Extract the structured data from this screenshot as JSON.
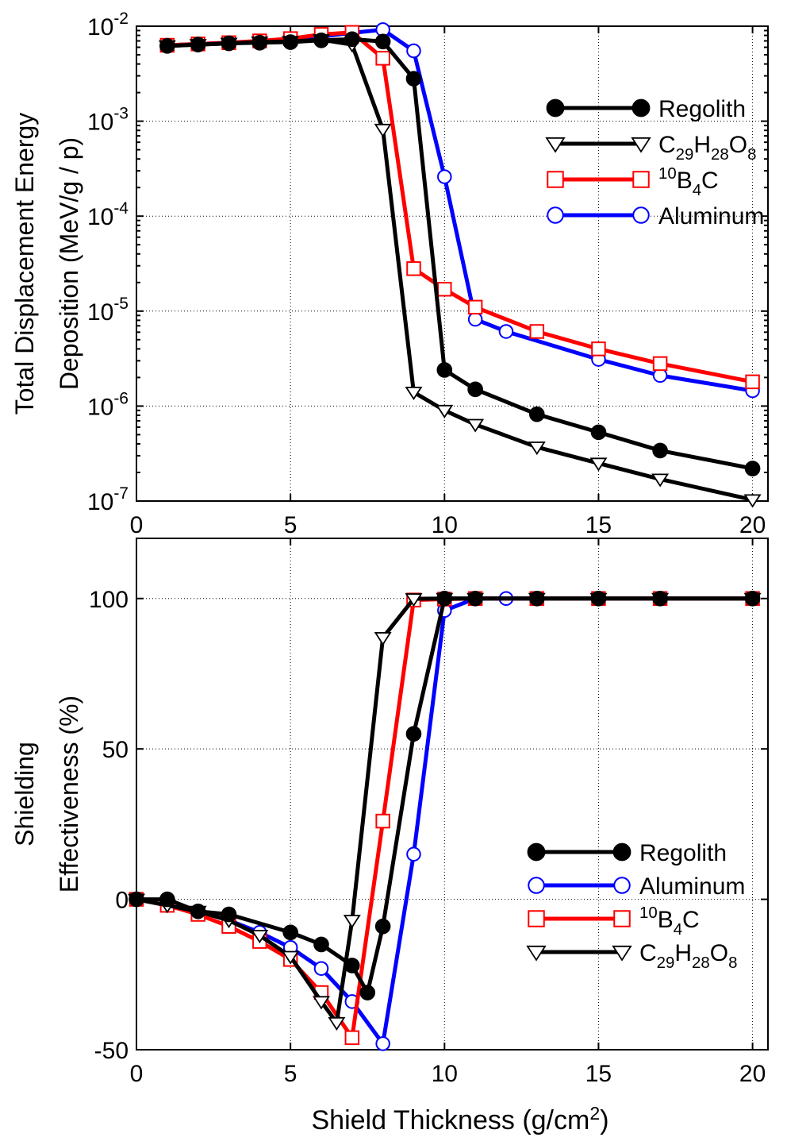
{
  "colors": {
    "Regolith": "#000000",
    "C29H28O8": "#000000",
    "10B4C": "#ff0000",
    "Aluminum": "#0000ff"
  },
  "chart_data": [
    {
      "type": "line",
      "yscale": "log",
      "xlim": [
        0,
        20.5
      ],
      "ylim": [
        1e-07,
        0.01
      ],
      "xticks": [
        0,
        5,
        10,
        15,
        20
      ],
      "xtick_labels": [
        "0",
        "5",
        "10",
        "15",
        "20"
      ],
      "yticks": [
        1e-07,
        1e-06,
        1e-05,
        0.0001,
        0.001,
        0.01
      ],
      "ytick_labels": [
        {
          "base": "10",
          "exp": "-7"
        },
        {
          "base": "10",
          "exp": "-6"
        },
        {
          "base": "10",
          "exp": "-5"
        },
        {
          "base": "10",
          "exp": "-4"
        },
        {
          "base": "10",
          "exp": "-3"
        },
        {
          "base": "10",
          "exp": "-2"
        }
      ],
      "ylabel_lines": [
        "Total Displacement Energy",
        "Deposition (MeV/g / p)"
      ],
      "xlabel": "",
      "grid": true,
      "legend_position": "top-right",
      "legend": [
        {
          "key": "Regolith",
          "marker": "filled-circle",
          "label": [
            {
              "t": "Regolith"
            }
          ]
        },
        {
          "key": "C29H28O8",
          "marker": "triangle-down",
          "label": [
            {
              "t": "C"
            },
            {
              "t": "29",
              "sub": true
            },
            {
              "t": "H"
            },
            {
              "t": "28",
              "sub": true
            },
            {
              "t": "O"
            },
            {
              "t": "8",
              "sub": true
            }
          ]
        },
        {
          "key": "10B4C",
          "marker": "square",
          "label": [
            {
              "t": "10",
              "sup": true
            },
            {
              "t": "B"
            },
            {
              "t": "4",
              "sub": true
            },
            {
              "t": "C"
            }
          ]
        },
        {
          "key": "Aluminum",
          "marker": "open-circle",
          "label": [
            {
              "t": "Aluminum"
            }
          ]
        }
      ],
      "series": [
        {
          "key": "Aluminum",
          "marker": "open-circle",
          "x": [
            1,
            2,
            3,
            4,
            5,
            6,
            7,
            8,
            9,
            10,
            11,
            12,
            15,
            17,
            20
          ],
          "y": [
            0.0063,
            0.0065,
            0.0067,
            0.0069,
            0.0072,
            0.0078,
            0.0085,
            0.0092,
            0.0055,
            0.00026,
            8.2e-06,
            6.1e-06,
            3.1e-06,
            2.1e-06,
            1.45e-06
          ]
        },
        {
          "key": "10B4C",
          "marker": "square",
          "x": [
            1,
            2,
            3,
            4,
            5,
            6,
            7,
            8,
            9,
            10,
            11,
            13,
            15,
            17,
            20
          ],
          "y": [
            0.0063,
            0.0065,
            0.0067,
            0.007,
            0.0074,
            0.0082,
            0.0086,
            0.0046,
            2.8e-05,
            1.7e-05,
            1.1e-05,
            6.1e-06,
            4e-06,
            2.8e-06,
            1.8e-06
          ]
        },
        {
          "key": "C29H28O8",
          "marker": "triangle-down",
          "x": [
            1,
            2,
            3,
            4,
            5,
            6,
            7,
            8,
            9,
            10,
            11,
            13,
            15,
            17,
            20
          ],
          "y": [
            0.0062,
            0.0064,
            0.0066,
            0.0068,
            0.0069,
            0.0072,
            0.0064,
            0.00082,
            1.4e-06,
            9e-07,
            6.4e-07,
            3.7e-07,
            2.5e-07,
            1.7e-07,
            1.03e-07
          ]
        },
        {
          "key": "Regolith",
          "marker": "filled-circle",
          "x": [
            1,
            2,
            3,
            4,
            5,
            6,
            7,
            8,
            9,
            10,
            11,
            13,
            15,
            17,
            20
          ],
          "y": [
            0.0062,
            0.0064,
            0.0066,
            0.0067,
            0.0068,
            0.0071,
            0.0073,
            0.0069,
            0.0028,
            2.4e-06,
            1.5e-06,
            8.2e-07,
            5.3e-07,
            3.4e-07,
            2.2e-07
          ]
        }
      ]
    },
    {
      "type": "line",
      "yscale": "linear",
      "xlim": [
        0,
        20.5
      ],
      "ylim": [
        -50,
        120
      ],
      "xticks": [
        0,
        5,
        10,
        15,
        20
      ],
      "xtick_labels": [
        "0",
        "5",
        "10",
        "15",
        "20"
      ],
      "yticks": [
        -50,
        0,
        50,
        100
      ],
      "ytick_labels": [
        "-50",
        "0",
        "50",
        "100"
      ],
      "ylabel_lines": [
        "Shielding",
        "Effectiveness (%)"
      ],
      "xlabel_parts": [
        {
          "t": "Shield Thickness (g/cm"
        },
        {
          "t": "2",
          "sup": true
        },
        {
          "t": ")"
        }
      ],
      "grid": true,
      "legend_position": "bottom-right",
      "legend": [
        {
          "key": "Regolith",
          "marker": "filled-circle",
          "label": [
            {
              "t": "Regolith"
            }
          ]
        },
        {
          "key": "Aluminum",
          "marker": "open-circle",
          "label": [
            {
              "t": "Aluminum"
            }
          ]
        },
        {
          "key": "10B4C",
          "marker": "square",
          "label": [
            {
              "t": "10",
              "sup": true
            },
            {
              "t": "B"
            },
            {
              "t": "4",
              "sub": true
            },
            {
              "t": "C"
            }
          ]
        },
        {
          "key": "C29H28O8",
          "marker": "triangle-down",
          "label": [
            {
              "t": "C"
            },
            {
              "t": "29",
              "sub": true
            },
            {
              "t": "H"
            },
            {
              "t": "28",
              "sub": true
            },
            {
              "t": "O"
            },
            {
              "t": "8",
              "sub": true
            }
          ]
        }
      ],
      "series": [
        {
          "key": "Aluminum",
          "marker": "open-circle",
          "x": [
            0,
            1,
            2,
            3,
            4,
            5,
            6,
            7,
            8,
            9,
            10,
            11,
            12,
            13,
            15,
            17,
            20
          ],
          "y": [
            0,
            -2,
            -4,
            -7,
            -11,
            -16,
            -23,
            -34,
            -48,
            15,
            96,
            100,
            100,
            100,
            100,
            100,
            100
          ]
        },
        {
          "key": "10B4C",
          "marker": "square",
          "x": [
            0,
            1,
            2,
            3,
            4,
            5,
            6,
            7,
            8,
            9,
            10,
            11,
            13,
            15,
            17,
            20
          ],
          "y": [
            0,
            -2,
            -5,
            -9,
            -14,
            -20,
            -31,
            -46,
            26,
            99.5,
            99.8,
            100,
            100,
            100,
            100,
            100
          ]
        },
        {
          "key": "C29H28O8",
          "marker": "triangle-down",
          "x": [
            0,
            1,
            2,
            3,
            4,
            5,
            6,
            6.5,
            7,
            8,
            9,
            10,
            11,
            13,
            15,
            17,
            20
          ],
          "y": [
            0,
            -2,
            -4,
            -7,
            -12,
            -19,
            -34,
            -41,
            -7,
            87,
            99.9,
            100,
            100,
            100,
            100,
            100,
            100
          ]
        },
        {
          "key": "Regolith",
          "marker": "filled-circle",
          "x": [
            0,
            1,
            2,
            3,
            5,
            6,
            7,
            7.5,
            8,
            9,
            10,
            11,
            13,
            15,
            17,
            20
          ],
          "y": [
            0,
            0,
            -4,
            -5,
            -11,
            -15,
            -22,
            -31,
            -9,
            55,
            100,
            100,
            100,
            100,
            100,
            100
          ]
        }
      ]
    }
  ]
}
